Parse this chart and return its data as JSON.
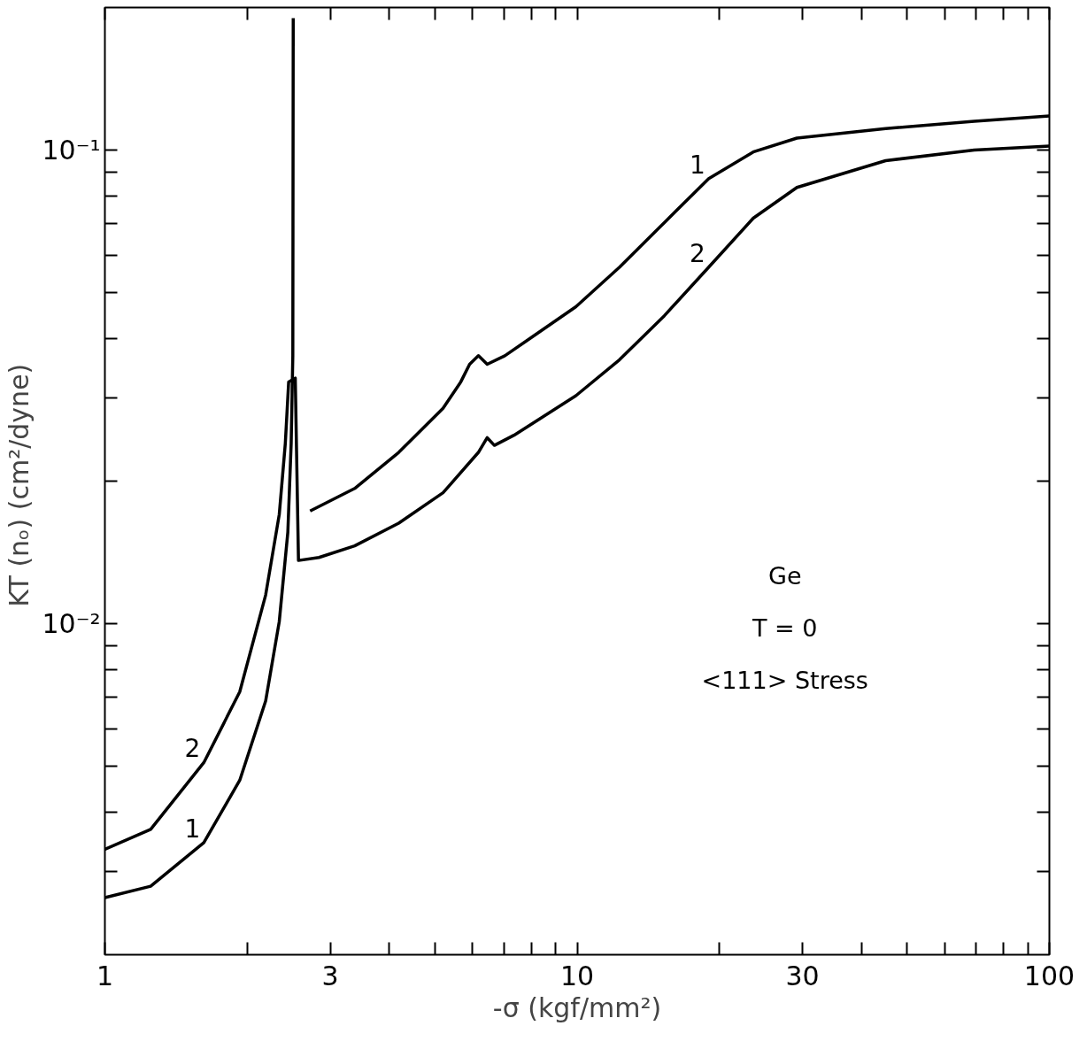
{
  "chart_data": {
    "type": "line",
    "xlabel": "-σ (kgf/mm²)",
    "ylabel": "KT (nₒ)  (cm²/dyne)",
    "log": "xy",
    "grid": false,
    "marker": "none",
    "line_style": "solid",
    "xlim": [
      1,
      100
    ],
    "ylim": [
      0.002,
      0.2
    ],
    "xticks": [
      1,
      {
        "value": 2,
        "label": null
      },
      3,
      {
        "value": 4,
        "label": null
      },
      {
        "value": 5,
        "label": null
      },
      {
        "value": 6,
        "label": null
      },
      {
        "value": 7,
        "label": null
      },
      {
        "value": 8,
        "label": null
      },
      {
        "value": 9,
        "label": null
      },
      10,
      {
        "value": 20,
        "label": null
      },
      30,
      {
        "value": 40,
        "label": null
      },
      {
        "value": 50,
        "label": null
      },
      {
        "value": 60,
        "label": null
      },
      {
        "value": 70,
        "label": null
      },
      {
        "value": 80,
        "label": null
      },
      {
        "value": 90,
        "label": null
      },
      100
    ],
    "yticks": [
      {
        "value": 0.003,
        "label": null
      },
      {
        "value": 0.004,
        "label": null
      },
      {
        "value": 0.005,
        "label": null
      },
      {
        "value": 0.006,
        "label": null
      },
      {
        "value": 0.007,
        "label": null
      },
      {
        "value": 0.008,
        "label": null
      },
      {
        "value": 0.009,
        "label": null
      },
      {
        "value": 0.01,
        "label": "10⁻²"
      },
      {
        "value": 0.02,
        "label": null
      },
      {
        "value": 0.03,
        "label": null
      },
      {
        "value": 0.04,
        "label": null
      },
      {
        "value": 0.05,
        "label": null
      },
      {
        "value": 0.06,
        "label": null
      },
      {
        "value": 0.07,
        "label": null
      },
      {
        "value": 0.08,
        "label": null
      },
      {
        "value": 0.09,
        "label": null
      },
      {
        "value": 0.1,
        "label": "10⁻¹"
      }
    ],
    "series": [
      {
        "name": "1",
        "color": "#000000",
        "x": [
          1,
          1.25,
          1.62,
          1.93,
          2.19,
          2.34,
          2.44,
          2.48,
          2.5,
          2.505,
          2.6,
          2.72,
          3.38,
          4.19,
          5.2,
          5.67,
          5.92,
          6.18,
          6.45,
          7.03,
          8.0,
          9.94,
          12.3,
          15.3,
          19.0,
          23.6,
          29.2,
          45.0,
          69.3,
          100
        ],
        "values": [
          0.00264,
          0.00279,
          0.00345,
          0.00467,
          0.00687,
          0.0101,
          0.0156,
          0.024,
          0.0368,
          0.19,
          null,
          0.0173,
          0.0193,
          0.023,
          0.0285,
          0.0324,
          0.0353,
          0.0368,
          0.0353,
          0.0368,
          0.0402,
          0.0467,
          0.0566,
          0.0703,
          0.0871,
          0.0991,
          0.106,
          0.111,
          0.115,
          0.118
        ]
      },
      {
        "name": "2",
        "color": "#000000",
        "x": [
          1,
          1.25,
          1.62,
          1.93,
          2.19,
          2.34,
          2.41,
          2.45,
          2.53,
          2.57,
          2.84,
          3.38,
          4.19,
          5.2,
          6.18,
          6.45,
          6.68,
          7.35,
          8.73,
          9.94,
          12.3,
          15.3,
          19.0,
          23.6,
          29.2,
          45.0,
          69.3,
          100
        ],
        "values": [
          0.00334,
          0.00368,
          0.00509,
          0.00718,
          0.0115,
          0.017,
          0.024,
          0.0324,
          0.033,
          0.0136,
          0.0138,
          0.0146,
          0.0163,
          0.0189,
          0.023,
          0.0247,
          0.0238,
          0.025,
          0.0279,
          0.0303,
          0.0361,
          0.0447,
          0.0566,
          0.0718,
          0.0834,
          0.095,
          0.1,
          0.102
        ]
      }
    ],
    "annotations": [
      "Ge",
      "T = 0",
      "<111> Stress"
    ]
  }
}
